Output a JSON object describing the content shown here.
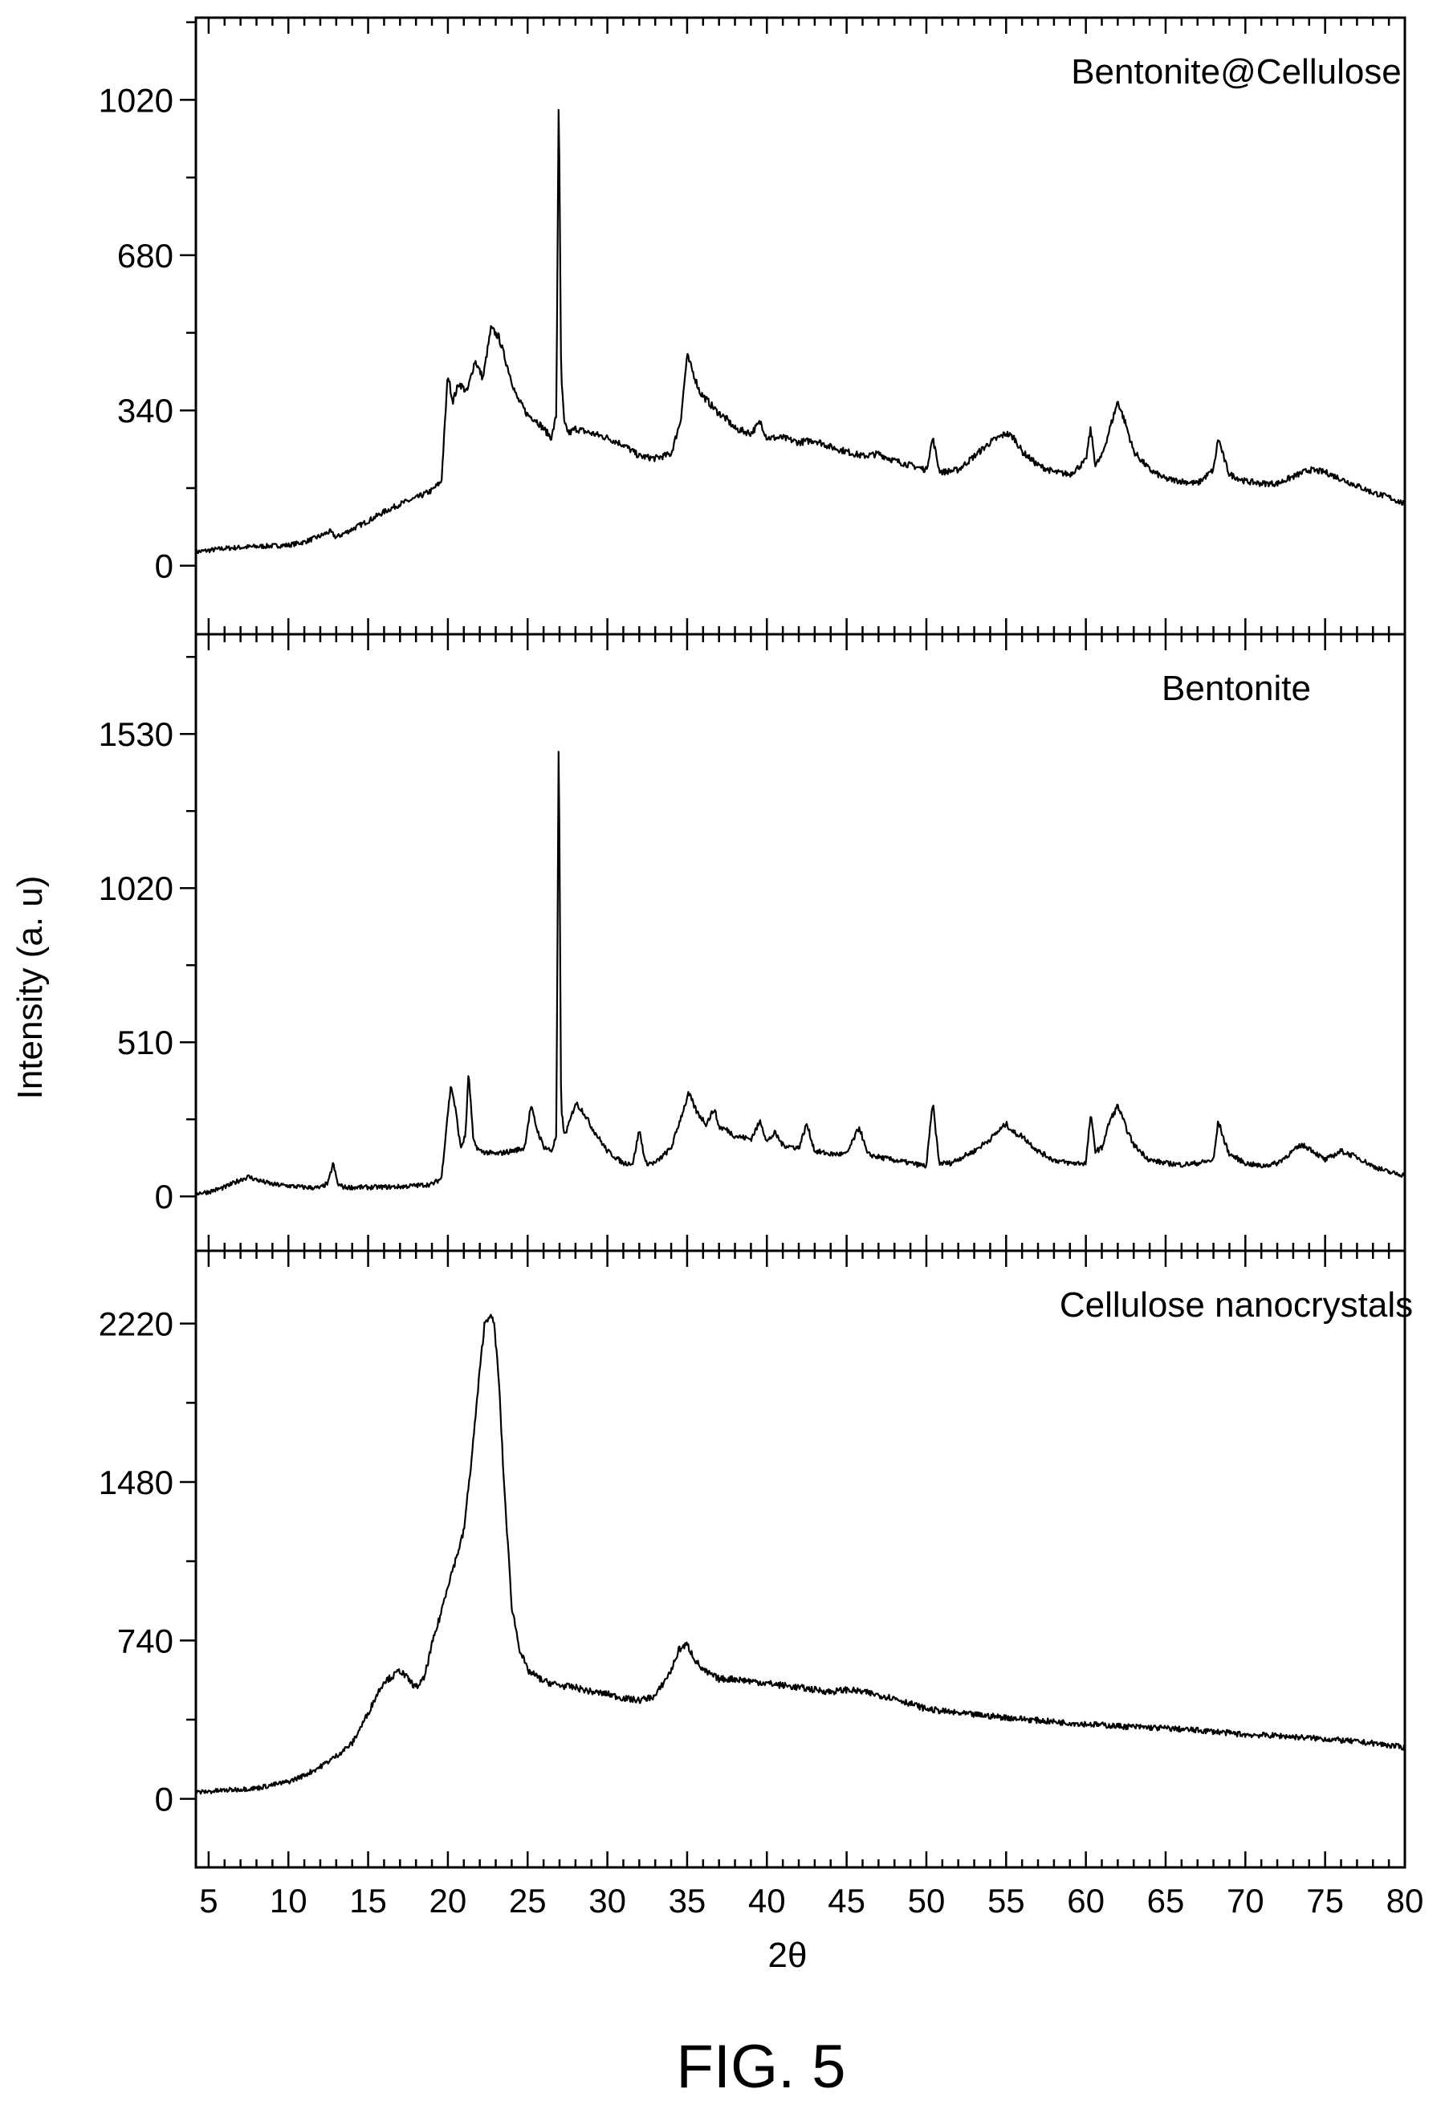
{
  "figure": {
    "caption": "FIG. 5",
    "xlabel": "2θ",
    "ylabel": "Intensity (a. u)",
    "x_ticks": [
      5,
      10,
      15,
      20,
      25,
      30,
      35,
      40,
      45,
      50,
      55,
      60,
      65,
      70,
      75,
      80
    ]
  },
  "chart_data": [
    {
      "type": "line",
      "title": "Bentonite@Cellulose",
      "xlim": [
        4.2,
        80
      ],
      "ylim": [
        -150,
        1200
      ],
      "y_ticks": [
        0,
        340,
        680,
        1020
      ],
      "series": [
        {
          "x": [
            4.2,
            6,
            8,
            10,
            11,
            12,
            12.6,
            13,
            14,
            15,
            16,
            17,
            18,
            19,
            19.6,
            20,
            20.3,
            20.7,
            21.2,
            21.7,
            22.2,
            22.7,
            23.2,
            23.7,
            24.3,
            25.0,
            25.5,
            26.0,
            26.5,
            26.8,
            26.95,
            27.1,
            27.3,
            27.6,
            28,
            29,
            30,
            31,
            32,
            33,
            34,
            34.6,
            35.0,
            35.3,
            35.8,
            36.3,
            36.8,
            37.5,
            38,
            39,
            39.6,
            40,
            41,
            42,
            43,
            44,
            45,
            46,
            47,
            48,
            49,
            50,
            50.4,
            50.8,
            51,
            52,
            53,
            54,
            55,
            55.5,
            56,
            57,
            58,
            59,
            60,
            60.3,
            60.6,
            61,
            61.5,
            62,
            62.5,
            63,
            64,
            65,
            66,
            67,
            68,
            68.3,
            68.7,
            69,
            70,
            71,
            72,
            73,
            74,
            75,
            76,
            77,
            78,
            79,
            80
          ],
          "y": [
            30,
            38,
            42,
            45,
            52,
            65,
            75,
            62,
            80,
            98,
            118,
            135,
            148,
            165,
            185,
            420,
            360,
            400,
            380,
            450,
            410,
            520,
            500,
            440,
            370,
            330,
            320,
            300,
            280,
            330,
            1050,
            420,
            310,
            290,
            300,
            290,
            280,
            265,
            240,
            235,
            245,
            320,
            460,
            430,
            380,
            360,
            340,
            320,
            300,
            290,
            315,
            280,
            280,
            270,
            275,
            260,
            250,
            240,
            245,
            230,
            220,
            210,
            280,
            210,
            205,
            210,
            240,
            270,
            290,
            280,
            250,
            220,
            205,
            200,
            230,
            300,
            220,
            240,
            300,
            360,
            310,
            250,
            210,
            190,
            185,
            180,
            210,
            280,
            230,
            200,
            185,
            180,
            180,
            195,
            210,
            205,
            190,
            175,
            160,
            150,
            135
          ]
        }
      ]
    },
    {
      "type": "line",
      "title": "Bentonite",
      "xlim": [
        4.2,
        80
      ],
      "ylim": [
        -180,
        1860
      ],
      "y_ticks": [
        0,
        510,
        1020,
        1530
      ],
      "series": [
        {
          "x": [
            4.2,
            5,
            6,
            7,
            7.5,
            8,
            9,
            10,
            11,
            12,
            12.5,
            12.8,
            13.1,
            13.5,
            15,
            17,
            19,
            19.6,
            20,
            20.2,
            20.5,
            20.8,
            21.1,
            21.3,
            21.6,
            22,
            23,
            24,
            24.8,
            25.2,
            25.6,
            26,
            26.5,
            26.8,
            26.95,
            27.1,
            27.3,
            27.6,
            28,
            28.5,
            29,
            30,
            31,
            31.6,
            32,
            32.4,
            33,
            34,
            34.6,
            35.1,
            35.6,
            36.2,
            36.7,
            37,
            37.5,
            38,
            39,
            39.6,
            40,
            40.5,
            41,
            42,
            42.5,
            43,
            44,
            45,
            45.8,
            46.3,
            47,
            48,
            49,
            50,
            50.4,
            50.8,
            51.5,
            53,
            54,
            55,
            55.5,
            56,
            57,
            58,
            59,
            60,
            60.3,
            60.6,
            61,
            61.5,
            62,
            62.5,
            63,
            64,
            65,
            66,
            67,
            68,
            68.3,
            68.7,
            69,
            70,
            71,
            72,
            73,
            73.5,
            74,
            75,
            76,
            77,
            78,
            79,
            80
          ],
          "y": [
            10,
            15,
            30,
            55,
            65,
            55,
            40,
            35,
            30,
            28,
            45,
            110,
            40,
            30,
            30,
            32,
            40,
            60,
            280,
            370,
            280,
            160,
            200,
            410,
            180,
            150,
            140,
            150,
            160,
            300,
            220,
            165,
            150,
            200,
            1550,
            300,
            200,
            240,
            310,
            280,
            230,
            150,
            110,
            110,
            220,
            110,
            110,
            160,
            260,
            340,
            280,
            240,
            290,
            230,
            220,
            200,
            190,
            250,
            180,
            210,
            170,
            160,
            240,
            150,
            140,
            140,
            230,
            140,
            130,
            120,
            110,
            100,
            310,
            110,
            110,
            150,
            190,
            240,
            210,
            200,
            150,
            120,
            110,
            110,
            270,
            150,
            160,
            250,
            300,
            230,
            170,
            120,
            110,
            105,
            110,
            120,
            250,
            180,
            140,
            110,
            100,
            110,
            150,
            170,
            160,
            120,
            150,
            130,
            100,
            80,
            70
          ]
        }
      ]
    },
    {
      "type": "line",
      "title": "Cellulose nanocrystals",
      "xlim": [
        4.2,
        80
      ],
      "ylim": [
        -320,
        2560
      ],
      "y_ticks": [
        0,
        740,
        1480,
        2220
      ],
      "series": [
        {
          "x": [
            4.2,
            6,
            8,
            10,
            11,
            12,
            13,
            14,
            15,
            15.5,
            16,
            16.5,
            17,
            17.5,
            18,
            18.5,
            19,
            19.5,
            20,
            20.5,
            21,
            21.5,
            22,
            22.3,
            22.6,
            22.9,
            23.2,
            23.5,
            24,
            24.5,
            25,
            26,
            27,
            28,
            29,
            30,
            31,
            32,
            33,
            34,
            34.5,
            35,
            35.5,
            36,
            37,
            38,
            40,
            42,
            44,
            45,
            46,
            48,
            50,
            52,
            55,
            58,
            60,
            62,
            65,
            68,
            70,
            72,
            75,
            78,
            80
          ],
          "y": [
            30,
            40,
            50,
            80,
            110,
            150,
            200,
            260,
            400,
            480,
            550,
            570,
            600,
            560,
            520,
            560,
            720,
            850,
            1000,
            1120,
            1250,
            1600,
            2000,
            2220,
            2260,
            2220,
            1950,
            1500,
            900,
            700,
            600,
            550,
            530,
            520,
            500,
            490,
            470,
            460,
            480,
            600,
            700,
            720,
            650,
            600,
            560,
            560,
            540,
            520,
            500,
            510,
            500,
            470,
            420,
            400,
            380,
            360,
            350,
            340,
            330,
            315,
            300,
            295,
            280,
            260,
            240
          ]
        }
      ]
    }
  ]
}
